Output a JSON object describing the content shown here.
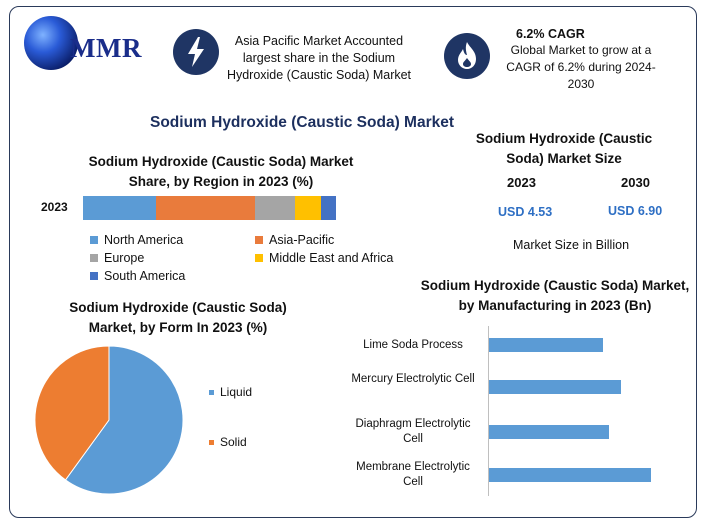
{
  "header": {
    "logo_text": "MMR",
    "highlight1": "Asia Pacific Market Accounted largest share in the Sodium Hydroxide (Caustic Soda) Market",
    "cagr_title": "6.2% CAGR",
    "cagr_text": "Global Market to grow at a CAGR of 6.2% during 2024-2030"
  },
  "main_title": "Sodium Hydroxide (Caustic Soda) Market",
  "market_size": {
    "title": "Sodium Hydroxide (Caustic Soda) Market Size",
    "year1": "2023",
    "year2": "2030",
    "value1": "USD 4.53",
    "value2": "USD 6.90",
    "unit_label": "Market Size in Billion"
  },
  "colors": {
    "north_america": "#5b9bd5",
    "asia_pacific": "#e97b3c",
    "europe": "#a5a5a5",
    "middle_east": "#ffc000",
    "south_america": "#4472c4",
    "liquid": "#5b9bd5",
    "solid": "#ed7d31",
    "manufacturing_bar": "#5b9bd5",
    "title_navy": "#1c2f5e"
  },
  "chart_data": [
    {
      "type": "bar",
      "orientation": "horizontal-stacked",
      "title": "Sodium Hydroxide (Caustic Soda) Market Share, by Region in 2023 (%)",
      "categories": [
        "2023"
      ],
      "series": [
        {
          "name": "North America",
          "values": [
            29
          ]
        },
        {
          "name": "Asia-Pacific",
          "values": [
            39
          ]
        },
        {
          "name": "Europe",
          "values": [
            16
          ]
        },
        {
          "name": "Middle East and Africa",
          "values": [
            10
          ]
        },
        {
          "name": "South America",
          "values": [
            6
          ]
        }
      ],
      "legend": "bottom"
    },
    {
      "type": "pie",
      "title": "Sodium Hydroxide (Caustic Soda) Market, by Form In 2023 (%)",
      "labels": [
        "Liquid",
        "Solid"
      ],
      "values": [
        60,
        40
      ],
      "legend": "right"
    },
    {
      "type": "bar",
      "orientation": "horizontal",
      "title": "Sodium Hydroxide (Caustic Soda) Market, by Manufacturing in 2023 (Bn)",
      "categories": [
        "Lime Soda Process",
        "Mercury Electrolytic Cell",
        "Diaphragm Electrolytic Cell",
        "Membrane Electrolytic Cell"
      ],
      "values": [
        0.95,
        1.1,
        1.0,
        1.35
      ],
      "xlim": [
        0,
        1.5
      ],
      "grid": false
    }
  ]
}
